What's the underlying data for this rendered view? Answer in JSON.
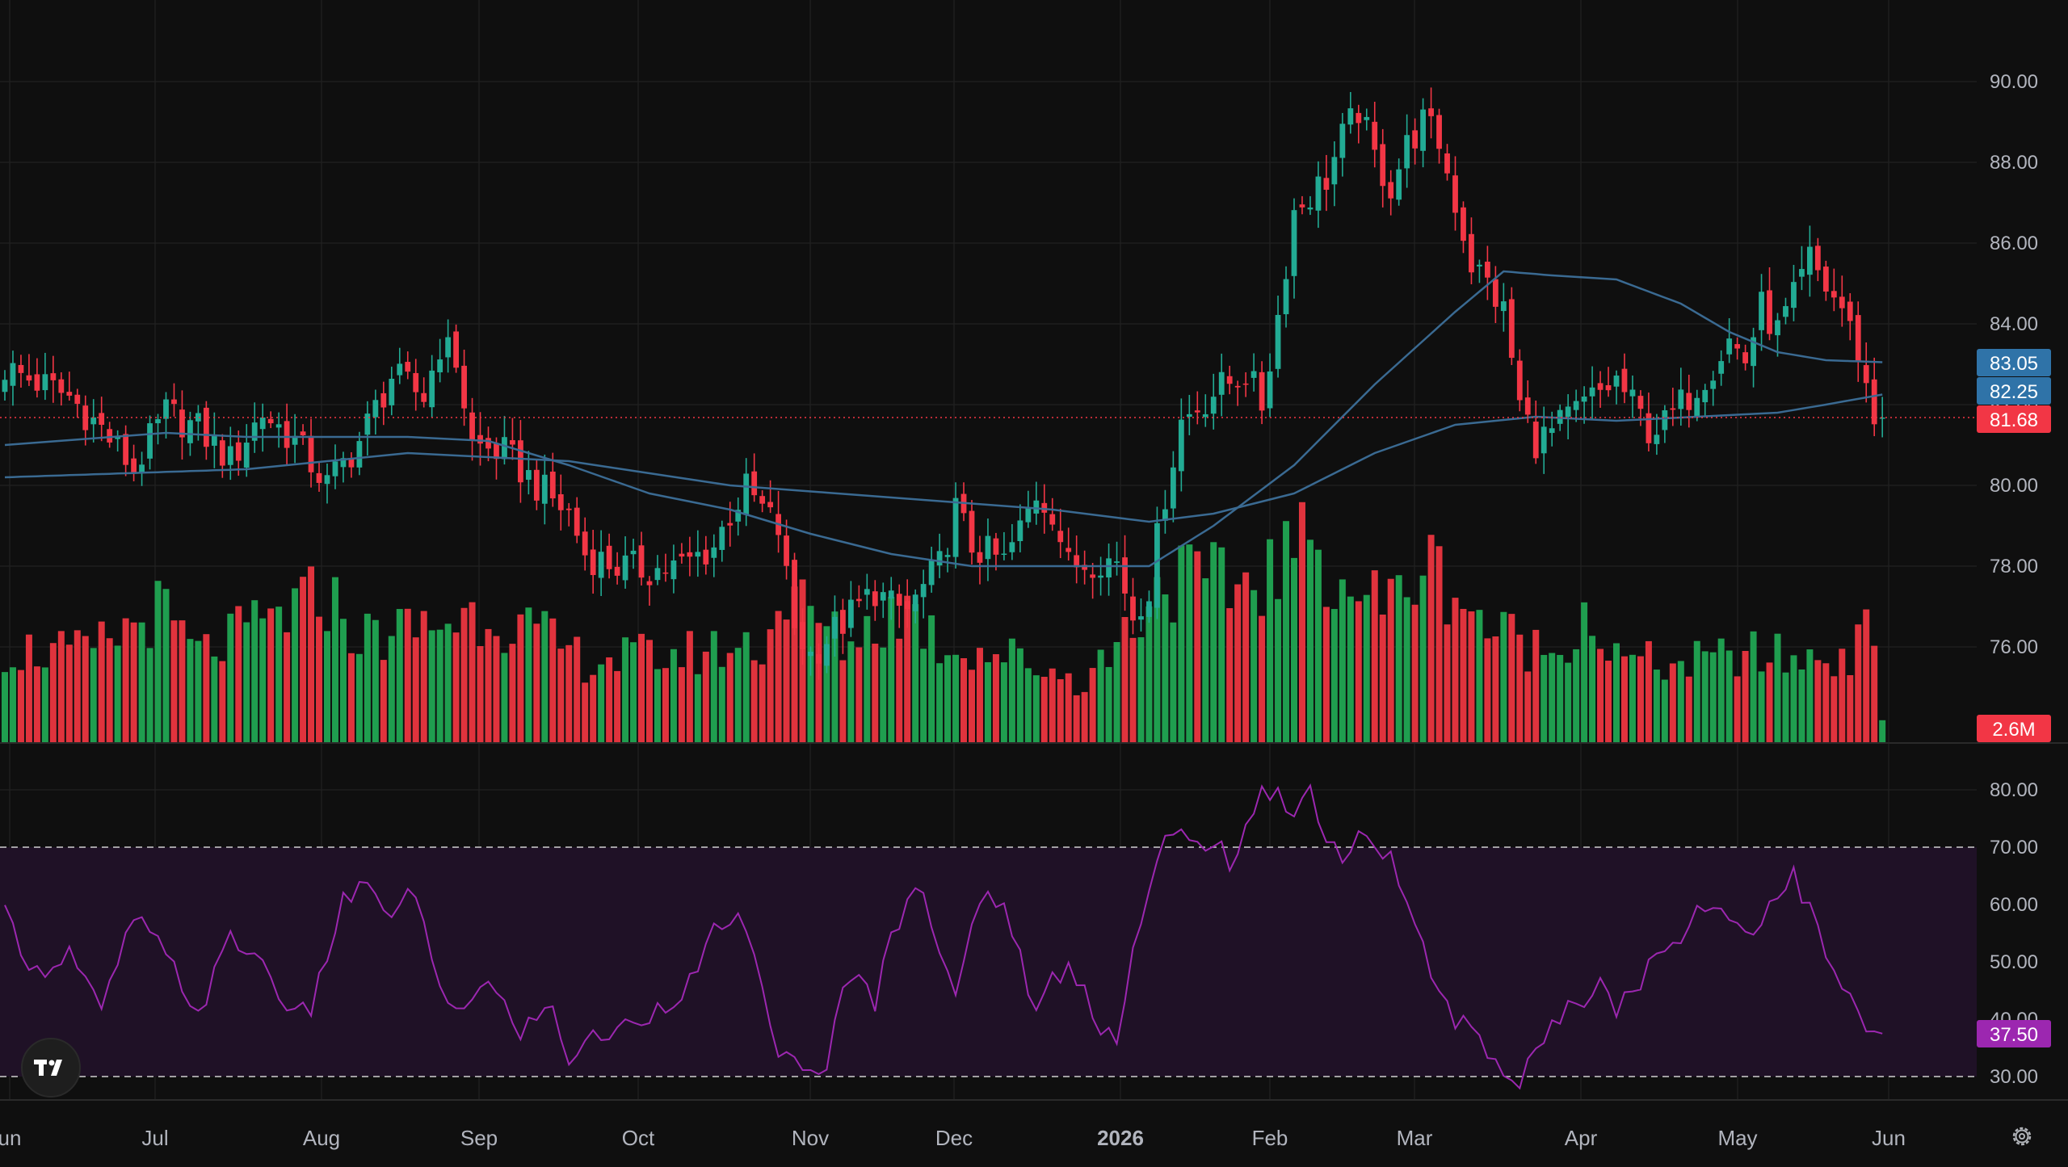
{
  "chart_data": {
    "type": "candlestick",
    "months": [
      {
        "label": "un",
        "bold": false
      },
      {
        "label": "Jul",
        "bold": false
      },
      {
        "label": "Aug",
        "bold": false
      },
      {
        "label": "Sep",
        "bold": false
      },
      {
        "label": "Oct",
        "bold": false
      },
      {
        "label": "Nov",
        "bold": false
      },
      {
        "label": "Dec",
        "bold": false
      },
      {
        "label": "2026",
        "bold": true
      },
      {
        "label": "Feb",
        "bold": false
      },
      {
        "label": "Mar",
        "bold": false
      },
      {
        "label": "Apr",
        "bold": false
      },
      {
        "label": "May",
        "bold": false
      },
      {
        "label": "Jun",
        "bold": false
      }
    ],
    "price_axis": {
      "ticks": [
        "90.00",
        "88.00",
        "86.00",
        "84.00",
        "82.00",
        "80.00",
        "78.00",
        "76.00"
      ],
      "range": [
        74.0,
        91.3
      ]
    },
    "rsi_axis": {
      "ticks": [
        "80.00",
        "70.00",
        "60.00",
        "50.00",
        "40.00",
        "30.00"
      ],
      "range": [
        27.5,
        83.5
      ],
      "overbought": 70,
      "oversold": 30
    },
    "last_price": {
      "value": "81.68",
      "color": "#f23645"
    },
    "ma_labels": [
      {
        "value": "83.05",
        "color": "#2f73a8"
      },
      {
        "value": "82.25",
        "color": "#2f73a8"
      }
    ],
    "volume_label": {
      "value": "2.6M",
      "color": "#f23645"
    },
    "rsi_label": {
      "value": "37.50",
      "color": "#9c27b0"
    },
    "colors": {
      "up": "#22ab94",
      "down": "#f23645",
      "vol_up": "#1f9e4f",
      "vol_down": "#e0333d",
      "ma": "#3a6a92",
      "rsi": "#9c27b0",
      "rsi_band": "#1f1126",
      "grid": "#1f1f1f"
    },
    "price_anchors": [
      [
        0,
        82.9
      ],
      [
        8,
        82.2
      ],
      [
        12,
        81.4
      ],
      [
        16,
        80.4
      ],
      [
        20,
        81.8
      ],
      [
        24,
        81.4
      ],
      [
        28,
        80.6
      ],
      [
        32,
        81.8
      ],
      [
        36,
        81.1
      ],
      [
        40,
        80.0
      ],
      [
        44,
        81.1
      ],
      [
        48,
        82.7
      ],
      [
        52,
        82.2
      ],
      [
        54,
        83.5
      ],
      [
        56,
        83.1
      ],
      [
        58,
        81.0
      ],
      [
        62,
        80.8
      ],
      [
        66,
        80.0
      ],
      [
        70,
        79.3
      ],
      [
        72,
        78.3
      ],
      [
        76,
        78.0
      ],
      [
        80,
        77.9
      ],
      [
        84,
        78.0
      ],
      [
        88,
        78.5
      ],
      [
        90,
        79.3
      ],
      [
        92,
        79.9
      ],
      [
        96,
        78.9
      ],
      [
        98,
        76.5
      ],
      [
        100,
        75.8
      ],
      [
        104,
        76.6
      ],
      [
        108,
        77.4
      ],
      [
        110,
        77.0
      ],
      [
        112,
        76.9
      ],
      [
        116,
        78.0
      ],
      [
        118,
        79.4
      ],
      [
        120,
        78.5
      ],
      [
        124,
        78.1
      ],
      [
        126,
        78.9
      ],
      [
        128,
        79.8
      ],
      [
        130,
        79.4
      ],
      [
        132,
        78.0
      ],
      [
        136,
        78.2
      ],
      [
        138,
        78.1
      ],
      [
        140,
        76.8
      ],
      [
        142,
        77.5
      ],
      [
        144,
        79.8
      ],
      [
        146,
        81.6
      ],
      [
        150,
        82.3
      ],
      [
        154,
        82.8
      ],
      [
        156,
        82.0
      ],
      [
        158,
        84.2
      ],
      [
        160,
        86.8
      ],
      [
        164,
        87.6
      ],
      [
        166,
        88.6
      ],
      [
        168,
        89.3
      ],
      [
        170,
        88.1
      ],
      [
        172,
        87.4
      ],
      [
        174,
        88.4
      ],
      [
        176,
        89.0
      ],
      [
        178,
        88.5
      ],
      [
        180,
        87.0
      ],
      [
        182,
        85.5
      ],
      [
        184,
        85.0
      ],
      [
        186,
        84.3
      ],
      [
        188,
        82.0
      ],
      [
        190,
        81.1
      ],
      [
        192,
        81.3
      ],
      [
        196,
        82.0
      ],
      [
        200,
        82.6
      ],
      [
        204,
        81.4
      ],
      [
        206,
        81.5
      ],
      [
        210,
        82.5
      ],
      [
        212,
        83.0
      ],
      [
        214,
        83.6
      ],
      [
        216,
        83.1
      ],
      [
        218,
        84.4
      ],
      [
        220,
        83.8
      ],
      [
        222,
        84.6
      ],
      [
        224,
        85.6
      ],
      [
        226,
        84.9
      ],
      [
        228,
        84.4
      ],
      [
        230,
        83.3
      ],
      [
        232,
        81.6
      ]
    ],
    "volume_anchors": [
      [
        0,
        1.7
      ],
      [
        10,
        1.6
      ],
      [
        19,
        2.4
      ],
      [
        24,
        1.6
      ],
      [
        40,
        2.7
      ],
      [
        44,
        1.9
      ],
      [
        52,
        2.1
      ],
      [
        60,
        2.4
      ],
      [
        72,
        1.5
      ],
      [
        84,
        1.6
      ],
      [
        94,
        1.8
      ],
      [
        97,
        2.7
      ],
      [
        104,
        1.8
      ],
      [
        112,
        2.5
      ],
      [
        116,
        1.8
      ],
      [
        124,
        1.6
      ],
      [
        134,
        1.1
      ],
      [
        139,
        2.0
      ],
      [
        144,
        3.0
      ],
      [
        152,
        2.8
      ],
      [
        158,
        3.2
      ],
      [
        160,
        3.5
      ],
      [
        164,
        3.4
      ],
      [
        166,
        2.9
      ],
      [
        172,
        2.5
      ],
      [
        176,
        3.3
      ],
      [
        180,
        2.8
      ],
      [
        184,
        2.1
      ],
      [
        192,
        1.6
      ],
      [
        196,
        2.4
      ],
      [
        200,
        1.5
      ],
      [
        208,
        1.4
      ],
      [
        216,
        1.6
      ],
      [
        224,
        1.5
      ],
      [
        230,
        1.7
      ],
      [
        232,
        2.2
      ],
      [
        233,
        0.4
      ]
    ],
    "rsi_anchors": [
      [
        0,
        58
      ],
      [
        4,
        48
      ],
      [
        8,
        52
      ],
      [
        12,
        41
      ],
      [
        16,
        58
      ],
      [
        20,
        51
      ],
      [
        24,
        41
      ],
      [
        28,
        54
      ],
      [
        32,
        50
      ],
      [
        36,
        40
      ],
      [
        38,
        42
      ],
      [
        40,
        51
      ],
      [
        42,
        61
      ],
      [
        46,
        63
      ],
      [
        48,
        56
      ],
      [
        50,
        64
      ],
      [
        52,
        56
      ],
      [
        54,
        44
      ],
      [
        56,
        42
      ],
      [
        60,
        46
      ],
      [
        64,
        38
      ],
      [
        68,
        42
      ],
      [
        70,
        33
      ],
      [
        72,
        36
      ],
      [
        76,
        38
      ],
      [
        80,
        41
      ],
      [
        84,
        45
      ],
      [
        86,
        48
      ],
      [
        88,
        55
      ],
      [
        90,
        58
      ],
      [
        92,
        55
      ],
      [
        94,
        44
      ],
      [
        96,
        35
      ],
      [
        98,
        32
      ],
      [
        100,
        30
      ],
      [
        102,
        33
      ],
      [
        104,
        44
      ],
      [
        106,
        47
      ],
      [
        108,
        43
      ],
      [
        110,
        55
      ],
      [
        112,
        60
      ],
      [
        114,
        63
      ],
      [
        116,
        53
      ],
      [
        118,
        45
      ],
      [
        120,
        55
      ],
      [
        122,
        62
      ],
      [
        124,
        60
      ],
      [
        126,
        51
      ],
      [
        128,
        41
      ],
      [
        130,
        47
      ],
      [
        132,
        49
      ],
      [
        134,
        45
      ],
      [
        136,
        39
      ],
      [
        138,
        37
      ],
      [
        140,
        52
      ],
      [
        142,
        62
      ],
      [
        144,
        71
      ],
      [
        146,
        72
      ],
      [
        148,
        70
      ],
      [
        150,
        72
      ],
      [
        152,
        67
      ],
      [
        154,
        72
      ],
      [
        156,
        79
      ],
      [
        158,
        80
      ],
      [
        160,
        76
      ],
      [
        162,
        80
      ],
      [
        164,
        72
      ],
      [
        166,
        68
      ],
      [
        168,
        72
      ],
      [
        170,
        69
      ],
      [
        172,
        69
      ],
      [
        174,
        60
      ],
      [
        176,
        52
      ],
      [
        178,
        44
      ],
      [
        180,
        40
      ],
      [
        182,
        39
      ],
      [
        184,
        35
      ],
      [
        186,
        31
      ],
      [
        188,
        28
      ],
      [
        190,
        35
      ],
      [
        192,
        38
      ],
      [
        194,
        43
      ],
      [
        196,
        44
      ],
      [
        198,
        48
      ],
      [
        200,
        42
      ],
      [
        202,
        45
      ],
      [
        204,
        49
      ],
      [
        206,
        52
      ],
      [
        208,
        55
      ],
      [
        210,
        59
      ],
      [
        212,
        60
      ],
      [
        214,
        58
      ],
      [
        216,
        55
      ],
      [
        218,
        58
      ],
      [
        220,
        62
      ],
      [
        222,
        65
      ],
      [
        224,
        59
      ],
      [
        226,
        51
      ],
      [
        228,
        46
      ],
      [
        230,
        40
      ],
      [
        232,
        37.5
      ]
    ],
    "ma50_anchors": [
      [
        0,
        81.0
      ],
      [
        20,
        81.3
      ],
      [
        30,
        81.2
      ],
      [
        50,
        81.2
      ],
      [
        60,
        81.1
      ],
      [
        70,
        80.5
      ],
      [
        80,
        79.8
      ],
      [
        90,
        79.4
      ],
      [
        100,
        78.8
      ],
      [
        110,
        78.3
      ],
      [
        120,
        78.0
      ],
      [
        128,
        78.0
      ],
      [
        135,
        78.0
      ],
      [
        142,
        78.0
      ],
      [
        150,
        79.0
      ],
      [
        160,
        80.5
      ],
      [
        170,
        82.5
      ],
      [
        180,
        84.3
      ],
      [
        186,
        85.3
      ],
      [
        192,
        85.2
      ],
      [
        200,
        85.1
      ],
      [
        208,
        84.5
      ],
      [
        214,
        83.8
      ],
      [
        220,
        83.3
      ],
      [
        226,
        83.1
      ],
      [
        233,
        83.05
      ]
    ],
    "ma200_anchors": [
      [
        0,
        80.2
      ],
      [
        30,
        80.4
      ],
      [
        50,
        80.8
      ],
      [
        70,
        80.6
      ],
      [
        90,
        80.0
      ],
      [
        110,
        79.7
      ],
      [
        130,
        79.4
      ],
      [
        142,
        79.1
      ],
      [
        150,
        79.3
      ],
      [
        160,
        79.8
      ],
      [
        170,
        80.8
      ],
      [
        180,
        81.5
      ],
      [
        190,
        81.7
      ],
      [
        200,
        81.6
      ],
      [
        210,
        81.7
      ],
      [
        220,
        81.8
      ],
      [
        226,
        82.0
      ],
      [
        233,
        82.25
      ]
    ]
  }
}
